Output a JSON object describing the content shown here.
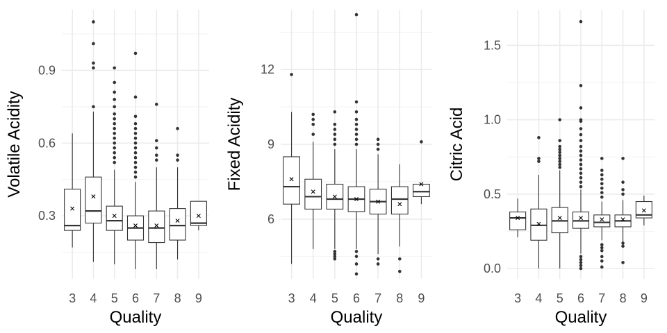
{
  "chart_data": [
    {
      "type": "boxplot",
      "title": "",
      "xlabel": "Quality",
      "ylabel": "Volatile Acidity",
      "categories": [
        "3",
        "4",
        "5",
        "6",
        "7",
        "8",
        "9"
      ],
      "yticks": [
        0.3,
        0.6,
        0.9
      ],
      "ytick_labels": [
        "0.3",
        "0.6",
        "0.9"
      ],
      "ylim": [
        0.04,
        1.15
      ],
      "grid": true,
      "boxes": [
        {
          "category": "3",
          "whisker_low": 0.17,
          "q1": 0.24,
          "median": 0.26,
          "q3": 0.41,
          "whisker_high": 0.64,
          "mean": 0.33,
          "outliers": []
        },
        {
          "category": "4",
          "whisker_low": 0.11,
          "q1": 0.27,
          "median": 0.32,
          "q3": 0.46,
          "whisker_high": 0.73,
          "mean": 0.38,
          "outliers": [
            0.75,
            0.91,
            0.93,
            1.01,
            1.1
          ]
        },
        {
          "category": "5",
          "whisker_low": 0.1,
          "q1": 0.24,
          "median": 0.28,
          "q3": 0.34,
          "whisker_high": 0.49,
          "mean": 0.3,
          "outliers": [
            0.52,
            0.54,
            0.56,
            0.58,
            0.6,
            0.62,
            0.64,
            0.66,
            0.68,
            0.7,
            0.72,
            0.75,
            0.78,
            0.81,
            0.85,
            0.91
          ]
        },
        {
          "category": "6",
          "whisker_low": 0.08,
          "q1": 0.2,
          "median": 0.25,
          "q3": 0.3,
          "whisker_high": 0.44,
          "mean": 0.26,
          "outliers": [
            0.46,
            0.48,
            0.5,
            0.52,
            0.54,
            0.56,
            0.58,
            0.6,
            0.62,
            0.64,
            0.66,
            0.68,
            0.71,
            0.79,
            0.97
          ]
        },
        {
          "category": "7",
          "whisker_low": 0.08,
          "q1": 0.19,
          "median": 0.25,
          "q3": 0.32,
          "whisker_high": 0.5,
          "mean": 0.26,
          "outliers": [
            0.53,
            0.55,
            0.58,
            0.61,
            0.76
          ]
        },
        {
          "category": "8",
          "whisker_low": 0.12,
          "q1": 0.2,
          "median": 0.26,
          "q3": 0.33,
          "whisker_high": 0.5,
          "mean": 0.28,
          "outliers": [
            0.53,
            0.55,
            0.66
          ]
        },
        {
          "category": "9",
          "whisker_low": 0.24,
          "q1": 0.26,
          "median": 0.27,
          "q3": 0.36,
          "whisker_high": 0.36,
          "mean": 0.3,
          "outliers": []
        }
      ]
    },
    {
      "type": "boxplot",
      "title": "",
      "xlabel": "Quality",
      "ylabel": "Fixed Acidity",
      "categories": [
        "3",
        "4",
        "5",
        "6",
        "7",
        "8",
        "9"
      ],
      "yticks": [
        6,
        9,
        12
      ],
      "ytick_labels": [
        "6",
        "9",
        "12"
      ],
      "ylim": [
        3.6,
        14.4
      ],
      "grid": true,
      "boxes": [
        {
          "category": "3",
          "whisker_low": 4.2,
          "q1": 6.6,
          "median": 7.3,
          "q3": 8.5,
          "whisker_high": 10.3,
          "mean": 7.6,
          "outliers": [
            11.8
          ]
        },
        {
          "category": "4",
          "whisker_low": 4.8,
          "q1": 6.4,
          "median": 6.9,
          "q3": 7.6,
          "whisker_high": 9.1,
          "mean": 7.1,
          "outliers": [
            9.4,
            9.8,
            10.0,
            10.2
          ]
        },
        {
          "category": "5",
          "whisker_low": 4.8,
          "q1": 6.4,
          "median": 6.8,
          "q3": 7.4,
          "whisker_high": 8.8,
          "mean": 6.9,
          "outliers": [
            4.4,
            4.5,
            4.6,
            4.7,
            9.0,
            9.2,
            9.4,
            9.6,
            9.8,
            10.3
          ]
        },
        {
          "category": "6",
          "whisker_low": 4.8,
          "q1": 6.3,
          "median": 6.8,
          "q3": 7.3,
          "whisker_high": 8.8,
          "mean": 6.8,
          "outliers": [
            3.8,
            4.2,
            4.5,
            4.7,
            9.0,
            9.2,
            9.4,
            9.6,
            9.8,
            10.0,
            10.3,
            10.7,
            14.2
          ]
        },
        {
          "category": "7",
          "whisker_low": 4.6,
          "q1": 6.2,
          "median": 6.7,
          "q3": 7.2,
          "whisker_high": 8.6,
          "mean": 6.7,
          "outliers": [
            4.2,
            4.4,
            8.8,
            9.0,
            9.2
          ]
        },
        {
          "category": "8",
          "whisker_low": 4.9,
          "q1": 6.2,
          "median": 6.8,
          "q3": 7.3,
          "whisker_high": 8.2,
          "mean": 6.6,
          "outliers": [
            3.9,
            4.4
          ]
        },
        {
          "category": "9",
          "whisker_low": 6.6,
          "q1": 6.9,
          "median": 7.1,
          "q3": 7.4,
          "whisker_high": 7.4,
          "mean": 7.4,
          "outliers": [
            9.1
          ]
        }
      ]
    },
    {
      "type": "boxplot",
      "title": "",
      "xlabel": "Quality",
      "ylabel": "Citric Acid",
      "categories": [
        "3",
        "4",
        "5",
        "6",
        "7",
        "8",
        "9"
      ],
      "yticks": [
        0.0,
        0.5,
        1.0,
        1.5
      ],
      "ytick_labels": [
        "0.0",
        "0.5",
        "1.0",
        "1.5"
      ],
      "ylim": [
        -0.07,
        1.74
      ],
      "grid": true,
      "boxes": [
        {
          "category": "3",
          "whisker_low": 0.21,
          "q1": 0.26,
          "median": 0.34,
          "q3": 0.38,
          "whisker_high": 0.47,
          "mean": 0.34,
          "outliers": []
        },
        {
          "category": "4",
          "whisker_low": 0.0,
          "q1": 0.19,
          "median": 0.29,
          "q3": 0.4,
          "whisker_high": 0.63,
          "mean": 0.3,
          "outliers": [
            0.72,
            0.74,
            0.88
          ]
        },
        {
          "category": "5",
          "whisker_low": 0.0,
          "q1": 0.24,
          "median": 0.32,
          "q3": 0.41,
          "whisker_high": 0.66,
          "mean": 0.34,
          "outliers": [
            0.68,
            0.7,
            0.72,
            0.74,
            0.76,
            0.78,
            0.8,
            0.82,
            0.86,
            1.0
          ]
        },
        {
          "category": "6",
          "whisker_low": 0.1,
          "q1": 0.27,
          "median": 0.32,
          "q3": 0.38,
          "whisker_high": 0.53,
          "mean": 0.34,
          "outliers": [
            0.0,
            0.02,
            0.04,
            0.06,
            0.08,
            0.55,
            0.58,
            0.61,
            0.64,
            0.67,
            0.7,
            0.73,
            0.76,
            0.79,
            0.82,
            0.86,
            0.9,
            0.94,
            0.99,
            1.0,
            1.08,
            1.23,
            1.66
          ]
        },
        {
          "category": "7",
          "whisker_low": 0.19,
          "q1": 0.28,
          "median": 0.31,
          "q3": 0.36,
          "whisker_high": 0.45,
          "mean": 0.33,
          "outliers": [
            0.01,
            0.05,
            0.08,
            0.12,
            0.14,
            0.16,
            0.48,
            0.51,
            0.54,
            0.57,
            0.6,
            0.63,
            0.66,
            0.74
          ]
        },
        {
          "category": "8",
          "whisker_low": 0.18,
          "q1": 0.28,
          "median": 0.32,
          "q3": 0.36,
          "whisker_high": 0.46,
          "mean": 0.33,
          "outliers": [
            0.04,
            0.15,
            0.17,
            0.5,
            0.53,
            0.58,
            0.74
          ]
        },
        {
          "category": "9",
          "whisker_low": 0.29,
          "q1": 0.34,
          "median": 0.36,
          "q3": 0.45,
          "whisker_high": 0.49,
          "mean": 0.39,
          "outliers": []
        }
      ]
    }
  ]
}
